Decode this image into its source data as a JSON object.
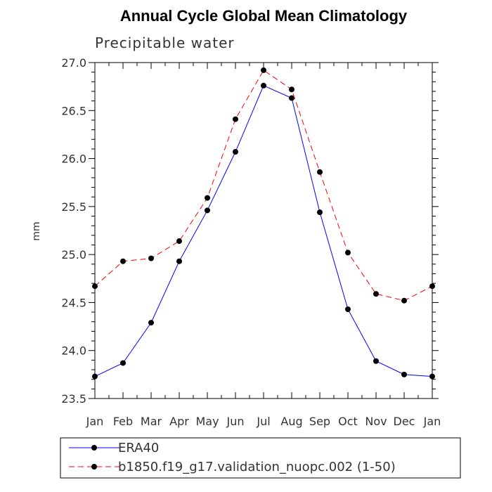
{
  "chart_data": {
    "type": "line",
    "title": "Annual Cycle Global Mean Climatology",
    "subtitle": "Precipitable water",
    "xlabel": "",
    "ylabel": "mm",
    "categories": [
      "Jan",
      "Feb",
      "Mar",
      "Apr",
      "May",
      "Jun",
      "Jul",
      "Aug",
      "Sep",
      "Oct",
      "Nov",
      "Dec",
      "Jan"
    ],
    "ylim": [
      23.5,
      27.0
    ],
    "yticks": [
      "23.5",
      "24.0",
      "24.5",
      "25.0",
      "25.5",
      "26.0",
      "26.5",
      "27.0"
    ],
    "grid": false,
    "legend_position": "bottom",
    "series": [
      {
        "name": "ERA40",
        "color": "#0000ff",
        "dash": "solid",
        "marker": "circle",
        "values": [
          23.73,
          23.87,
          24.29,
          24.93,
          25.46,
          26.07,
          26.76,
          26.63,
          25.44,
          24.43,
          23.89,
          23.75,
          23.73
        ]
      },
      {
        "name": "b1850.f19_g17.validation_nuopc.002 (1-50)",
        "color": "#ff0000",
        "dash": "dashed",
        "marker": "circle",
        "values": [
          24.67,
          24.93,
          24.96,
          25.14,
          25.59,
          26.41,
          26.92,
          26.72,
          25.86,
          25.02,
          24.59,
          24.52,
          24.67
        ]
      }
    ]
  }
}
